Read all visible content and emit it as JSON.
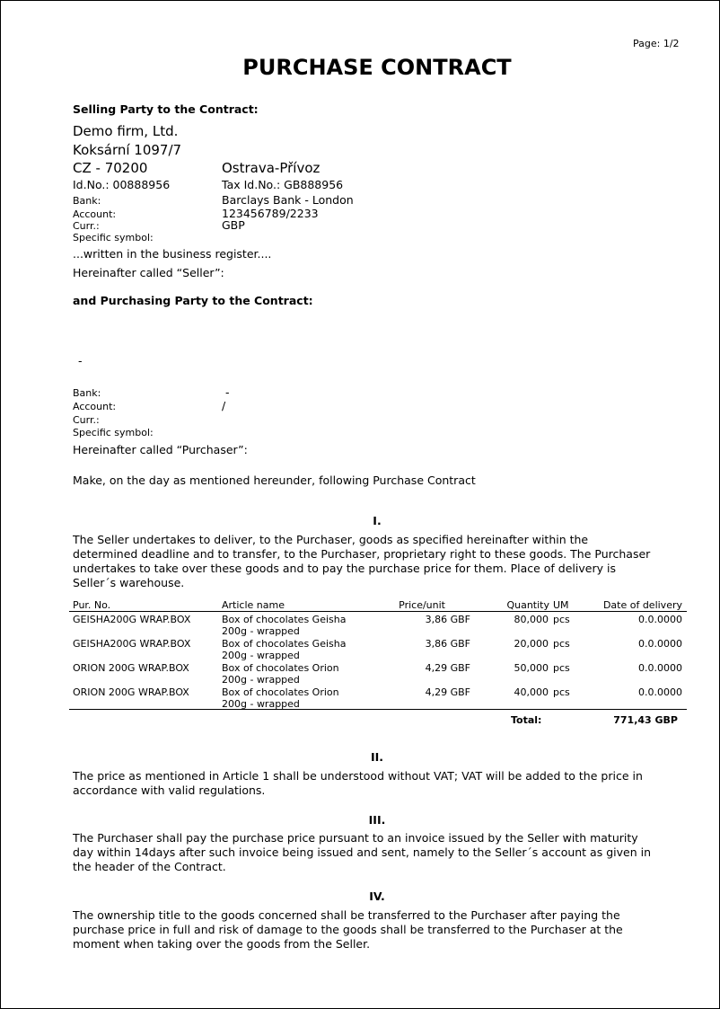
{
  "page_indicator": "Page: 1/2",
  "title": "PURCHASE CONTRACT",
  "seller": {
    "heading": "Selling Party to the Contract:",
    "name": "Demo firm, Ltd.",
    "street": "Koksární 1097/7",
    "zip": "CZ - 70200",
    "city": "Ostrava-Přívoz",
    "id_no": "Id.No.: 00888956",
    "tax_id": "Tax Id.No.: GB888956",
    "bank_label": "Bank:",
    "bank_value": "Barclays Bank - London",
    "account_label": "Account:",
    "account_value": "123456789/2233",
    "curr_label": "Curr.:",
    "curr_value": "GBP",
    "specific_label": "Specific symbol:",
    "register_note": "...written in the business register....",
    "called": "Hereinafter called “Seller”:"
  },
  "purchaser": {
    "heading": "and Purchasing Party to the Contract:",
    "zip_city": "-",
    "bank_label": "Bank:",
    "bank_value": "-",
    "account_label": "Account:",
    "account_value": "/",
    "curr_label": "Curr.:",
    "specific_label": "Specific symbol:",
    "called": "Hereinafter called “Purchaser”:"
  },
  "intro": "Make, on the day as mentioned hereunder, following Purchase Contract",
  "articles": [
    {
      "num": "I.",
      "lines": [
        "The Seller undertakes to deliver, to the Purchaser, goods as specified hereinafter within the",
        "determined deadline and to transfer, to the Purchaser, proprietary right to these goods. The Purchaser",
        "undertakes to take over these goods and to pay the purchase price for them. Place of delivery is",
        "Seller´s warehouse."
      ]
    },
    {
      "num": "II.",
      "lines": [
        "The price as mentioned in Article 1 shall be understood without VAT; VAT will be added to the price in",
        "accordance with valid regulations."
      ]
    },
    {
      "num": "III.",
      "lines": [
        "The Purchaser shall pay the purchase price pursuant to an invoice issued by the Seller with maturity",
        "day within 14days after such invoice being issued and sent, namely to the Seller´s account as given in",
        "the header of the Contract."
      ]
    },
    {
      "num": "IV.",
      "lines": [
        "The ownership title to the goods concerned shall be transferred to the Purchaser after paying the",
        "purchase price in full and risk of damage to the goods shall be transferred to the Purchaser at the",
        "moment when taking over the goods from the Seller."
      ]
    }
  ],
  "table": {
    "headers": {
      "pur_no": "Pur. No.",
      "article": "Article name",
      "price": "Price/unit",
      "qty": "Quantity",
      "um": "UM",
      "date": "Date of delivery"
    },
    "rows": [
      {
        "pur_no": "GEISHA200G WRAP.BOX",
        "article1": "Box of chocolates Geisha",
        "article2": "200g - wrapped",
        "price": "3,86 GBF",
        "qty": "80,000",
        "um": "pcs",
        "date": "0.0.0000"
      },
      {
        "pur_no": "GEISHA200G WRAP.BOX",
        "article1": "Box of chocolates Geisha",
        "article2": "200g - wrapped",
        "price": "3,86 GBF",
        "qty": "20,000",
        "um": "pcs",
        "date": "0.0.0000"
      },
      {
        "pur_no": "ORION 200G WRAP.BOX",
        "article1": "Box of chocolates Orion",
        "article2": "200g - wrapped",
        "price": "4,29 GBF",
        "qty": "50,000",
        "um": "pcs",
        "date": "0.0.0000"
      },
      {
        "pur_no": "ORION 200G WRAP.BOX",
        "article1": "Box of chocolates Orion",
        "article2": "200g - wrapped",
        "price": "4,29 GBF",
        "qty": "40,000",
        "um": "pcs",
        "date": "0.0.0000"
      }
    ],
    "total_label": "Total:",
    "total_value": "771,43 GBP"
  }
}
